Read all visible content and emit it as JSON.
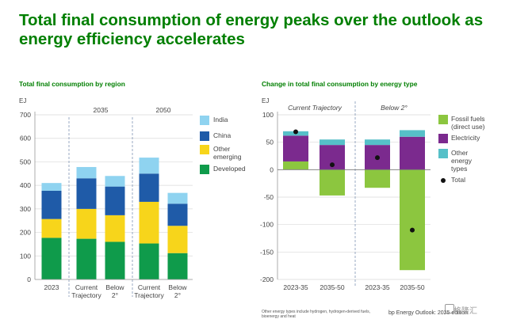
{
  "title": "Total final consumption of energy peaks over the outlook as energy efficiency accelerates",
  "left": {
    "subtitle": "Total final consumption by region",
    "unit": "EJ",
    "year_labels": [
      "2035",
      "2050"
    ],
    "x_labels": [
      [
        "2023"
      ],
      [
        "Current",
        "Trajectory"
      ],
      [
        "Below",
        "2°"
      ],
      [
        "Current",
        "Trajectory"
      ],
      [
        "Below",
        "2°"
      ]
    ],
    "legend": [
      {
        "label": [
          "India"
        ],
        "color": "#8fd3f0"
      },
      {
        "label": [
          "China"
        ],
        "color": "#1f5ba8"
      },
      {
        "label": [
          "Other",
          "emerging"
        ],
        "color": "#f7d51b"
      },
      {
        "label": [
          "Developed"
        ],
        "color": "#0f9b4b"
      }
    ]
  },
  "right": {
    "subtitle": "Change in total final consumption by energy type",
    "unit": "EJ",
    "scenario_labels": [
      "Current Trajectory",
      "Below 2°"
    ],
    "x_labels": [
      "2023-35",
      "2035-50",
      "2023-35",
      "2035-50"
    ],
    "legend": [
      {
        "label": [
          "Fossil fuels",
          "(direct use)"
        ],
        "color": "#8cc63f",
        "type": "box"
      },
      {
        "label": [
          "Electricity"
        ],
        "color": "#7b2a8e",
        "type": "box"
      },
      {
        "label": [
          "Other",
          "energy",
          "types"
        ],
        "color": "#56c0c8",
        "type": "box"
      },
      {
        "label": [
          "Total"
        ],
        "color": "#111111",
        "type": "dot"
      }
    ]
  },
  "footnote": "Other energy types include hydrogen, hydrogen-derived fuels, bioenergy and heat",
  "source": "bp Energy Outlook: 2025 edition",
  "watermark": "格隆汇",
  "chart_data": [
    {
      "type": "bar",
      "stacked": true,
      "title": "Total final consumption by region",
      "ylabel": "EJ",
      "ylim": [
        0,
        700
      ],
      "yticks": [
        0,
        100,
        200,
        300,
        400,
        500,
        600,
        700
      ],
      "categories": [
        "2023",
        "2035 Current Trajectory",
        "2035 Below 2°",
        "2050 Current Trajectory",
        "2050 Below 2°"
      ],
      "series": [
        {
          "name": "Developed",
          "color": "#0f9b4b",
          "values": [
            177,
            173,
            160,
            153,
            112
          ]
        },
        {
          "name": "Other emerging",
          "color": "#f7d51b",
          "values": [
            80,
            127,
            113,
            177,
            116
          ]
        },
        {
          "name": "China",
          "color": "#1f5ba8",
          "values": [
            120,
            130,
            122,
            120,
            94
          ]
        },
        {
          "name": "India",
          "color": "#8fd3f0",
          "values": [
            33,
            48,
            45,
            68,
            46
          ]
        }
      ],
      "grid": true
    },
    {
      "type": "bar",
      "stacked": true,
      "title": "Change in total final consumption by energy type",
      "ylabel": "EJ",
      "ylim": [
        -200,
        100
      ],
      "yticks": [
        -200,
        -150,
        -100,
        -50,
        0,
        50,
        100
      ],
      "categories": [
        "Current Trajectory 2023-35",
        "Current Trajectory 2035-50",
        "Below 2° 2023-35",
        "Below 2° 2035-50"
      ],
      "series": [
        {
          "name": "Fossil fuels (direct use)",
          "color": "#8cc63f",
          "values": [
            15,
            -47,
            -33,
            -183
          ]
        },
        {
          "name": "Electricity",
          "color": "#7b2a8e",
          "values": [
            47,
            45,
            45,
            60
          ]
        },
        {
          "name": "Other energy types",
          "color": "#56c0c8",
          "values": [
            8,
            10,
            10,
            12
          ]
        }
      ],
      "totals": {
        "name": "Total",
        "values": [
          69,
          9,
          22,
          -110
        ]
      },
      "grid": true
    }
  ]
}
